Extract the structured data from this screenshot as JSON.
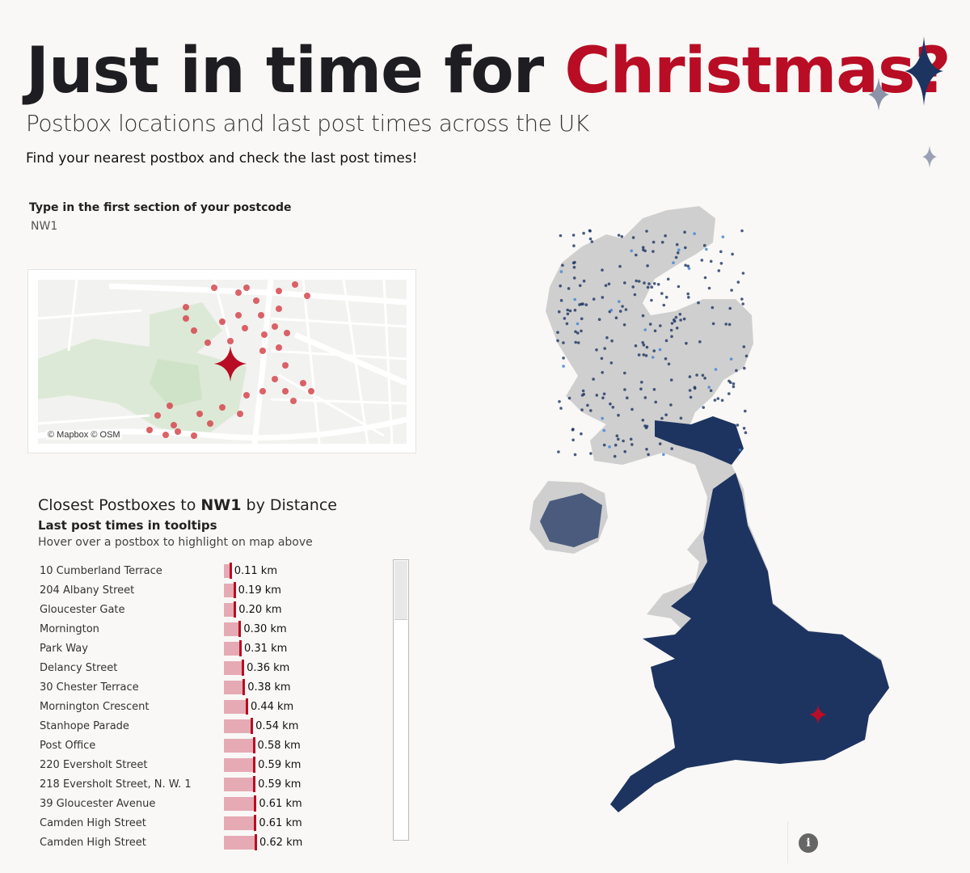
{
  "title": {
    "part1": "Just in time for ",
    "part2": "Christmas?"
  },
  "subtitle": "Postbox locations and last post times across the UK",
  "tagline": "Find your nearest postbox and check the last post times!",
  "postcode": {
    "label": "Type in the first section of your postcode",
    "value": "NW1"
  },
  "mini_map": {
    "attribution": "© Mapbox © OSM"
  },
  "list": {
    "title_prefix": "Closest Postboxes to ",
    "title_postcode": "NW1",
    "title_suffix": " by Distance",
    "subtitle": "Last post times in tooltips",
    "hint": "Hover over a postbox to highlight on map above",
    "unit": "km",
    "rows": [
      {
        "name": "10 Cumberland Terrace",
        "distance": 0.11
      },
      {
        "name": "204 Albany Street",
        "distance": 0.19
      },
      {
        "name": "Gloucester Gate",
        "distance": 0.2
      },
      {
        "name": "Mornington",
        "distance": 0.3
      },
      {
        "name": "Park Way",
        "distance": 0.31
      },
      {
        "name": "Delancy Street",
        "distance": 0.36
      },
      {
        "name": "30 Chester Terrace",
        "distance": 0.38
      },
      {
        "name": "Mornington Crescent",
        "distance": 0.44
      },
      {
        "name": "Stanhope Parade",
        "distance": 0.54
      },
      {
        "name": "Post Office",
        "distance": 0.58
      },
      {
        "name": "220 Eversholt Street",
        "distance": 0.59
      },
      {
        "name": "218 Eversholt Street, N. W. 1",
        "distance": 0.59
      },
      {
        "name": "39 Gloucester Avenue",
        "distance": 0.61
      },
      {
        "name": "Camden High Street",
        "distance": 0.61
      },
      {
        "name": "Camden High Street",
        "distance": 0.62
      }
    ]
  },
  "info_button": {
    "icon": "info-icon",
    "glyph": "i"
  },
  "colors": {
    "accent": "#b80d24",
    "navy": "#1d3461",
    "bar": "#e6aab4",
    "land": "#cfcfcf"
  }
}
